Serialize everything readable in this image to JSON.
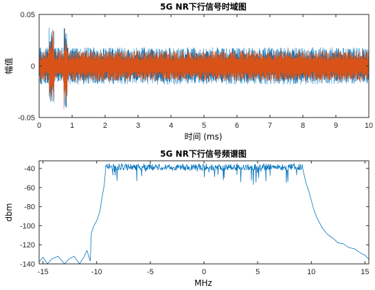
{
  "chart_data": [
    {
      "type": "line",
      "title": "5G NR下行信号时域图",
      "xlabel": "时间 (ms)",
      "ylabel": "幅值",
      "xlim": [
        0,
        10
      ],
      "ylim": [
        -0.05,
        0.05
      ],
      "xticks": [
        0,
        1,
        2,
        3,
        4,
        5,
        6,
        7,
        8,
        9,
        10
      ],
      "xtick_labels": [
        "0",
        "1",
        "2",
        "3",
        "4",
        "5",
        "6",
        "7",
        "8",
        "9",
        "10"
      ],
      "yticks": [
        -0.05,
        0,
        0.05
      ],
      "ytick_labels": [
        "-0.05",
        "0",
        "0.05"
      ],
      "series": [
        {
          "color": "#0072BD",
          "envelope": "noise-like",
          "baseline_amplitude": 0.018,
          "bursts": [
            {
              "x_start": 0.3,
              "x_end": 0.45,
              "min": -0.038,
              "max": 0.04
            },
            {
              "x_start": 0.75,
              "x_end": 0.85,
              "min": -0.042,
              "max": 0.038
            }
          ]
        },
        {
          "color": "#D95319",
          "envelope": "noise-like",
          "baseline_amplitude": 0.015,
          "bursts": [
            {
              "x_start": 0.3,
              "x_end": 0.45,
              "min": -0.036,
              "max": 0.036
            },
            {
              "x_start": 0.75,
              "x_end": 0.85,
              "min": -0.045,
              "max": 0.04
            }
          ]
        }
      ]
    },
    {
      "type": "line",
      "title": "5G NR下行信号频谱图",
      "xlabel": "MHz",
      "ylabel": "dbm",
      "xlim": [
        -15.36,
        15.36
      ],
      "ylim": [
        -140,
        -32
      ],
      "xticks": [
        -15,
        -10,
        -5,
        0,
        5,
        10,
        15
      ],
      "xtick_labels": [
        "-15",
        "-10",
        "-5",
        "0",
        "5",
        "10",
        "15"
      ],
      "yticks": [
        -140,
        -120,
        -100,
        -80,
        -60,
        -40
      ],
      "ytick_labels": [
        "-140",
        "-120",
        "-100",
        "-80",
        "-60",
        "-40"
      ],
      "series": [
        {
          "color": "#0072BD",
          "passband": {
            "x_start": -9.2,
            "x_end": 9.2,
            "level_top": -35,
            "level_min_dips": -58
          },
          "points": [
            [
              -15.36,
              -138
            ],
            [
              -15.0,
              -133
            ],
            [
              -14.6,
              -140
            ],
            [
              -14.2,
              -135
            ],
            [
              -13.6,
              -132
            ],
            [
              -13.0,
              -140
            ],
            [
              -12.6,
              -135
            ],
            [
              -12.1,
              -132
            ],
            [
              -11.6,
              -140
            ],
            [
              -11.2,
              -133
            ],
            [
              -10.9,
              -126
            ],
            [
              -10.6,
              -137
            ],
            [
              -10.5,
              -108
            ],
            [
              -10.3,
              -101
            ],
            [
              -10.0,
              -95
            ],
            [
              -9.7,
              -85
            ],
            [
              -9.5,
              -70
            ],
            [
              -9.3,
              -58
            ],
            [
              -9.2,
              -45
            ],
            [
              9.2,
              -40
            ],
            [
              9.5,
              -55
            ],
            [
              9.8,
              -65
            ],
            [
              10.2,
              -82
            ],
            [
              10.5,
              -91
            ],
            [
              11.0,
              -102
            ],
            [
              11.5,
              -109
            ],
            [
              12.0,
              -113
            ],
            [
              12.5,
              -118
            ],
            [
              13.0,
              -119
            ],
            [
              13.5,
              -123
            ],
            [
              14.0,
              -124
            ],
            [
              14.5,
              -128
            ],
            [
              15.0,
              -131
            ],
            [
              15.36,
              -135
            ]
          ]
        }
      ]
    }
  ]
}
